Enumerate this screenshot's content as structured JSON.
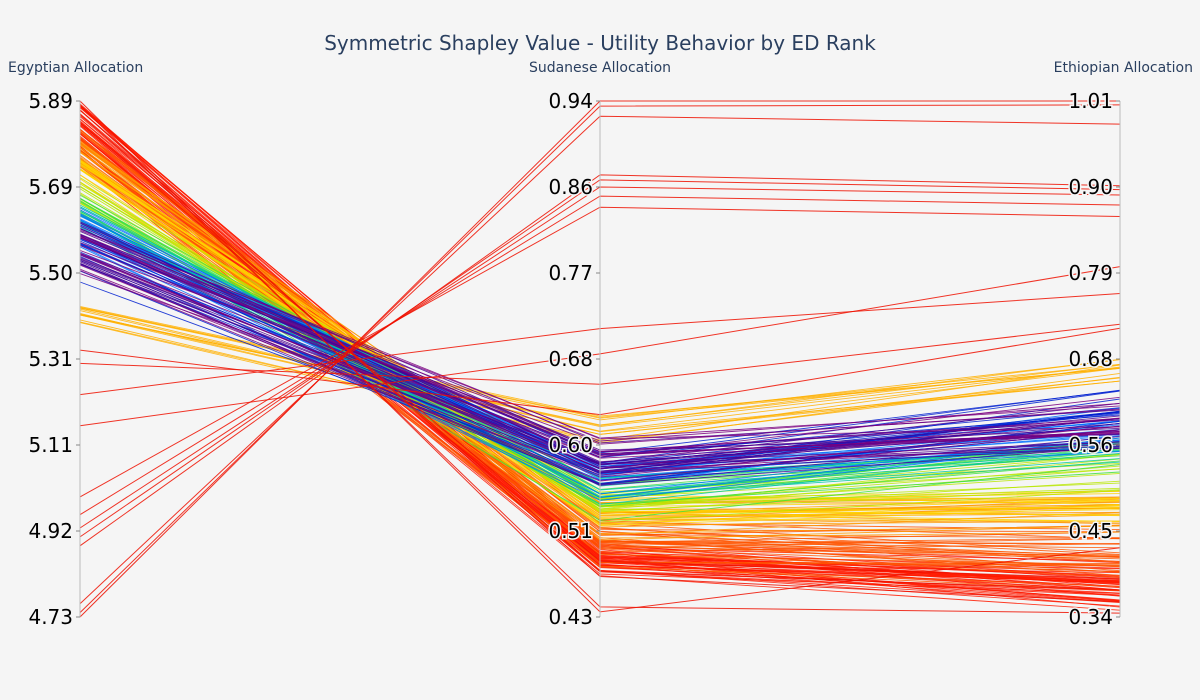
{
  "chart_data": {
    "type": "parallel_coordinates",
    "title": "Symmetric Shapley Value - Utility Behavior by ED Rank",
    "colorscale": "rainbow (red = lower ED rank value, violet = higher)",
    "dimensions": [
      {
        "label": "Egyptian Allocation",
        "range": [
          4.73,
          5.89
        ],
        "ticks": [
          "5.89",
          "5.69",
          "5.50",
          "5.31",
          "5.11",
          "4.92",
          "4.73"
        ]
      },
      {
        "label": "Sudanese Allocation",
        "range": [
          0.43,
          0.94
        ],
        "ticks": [
          "0.94",
          "0.86",
          "0.77",
          "0.68",
          "0.60",
          "0.51",
          "0.43"
        ]
      },
      {
        "label": "Ethiopian Allocation",
        "range": [
          0.34,
          1.01
        ],
        "ticks": [
          "1.01",
          "0.90",
          "0.79",
          "0.68",
          "0.56",
          "0.45",
          "0.34"
        ]
      }
    ],
    "outlier_lines": [
      [
        4.73,
        0.94,
        1.01
      ],
      [
        4.74,
        0.935,
        1.005
      ],
      [
        4.76,
        0.925,
        0.98
      ],
      [
        4.89,
        0.867,
        0.9
      ],
      [
        4.91,
        0.862,
        0.895
      ],
      [
        4.93,
        0.855,
        0.888
      ],
      [
        4.96,
        0.846,
        0.875
      ],
      [
        5.0,
        0.835,
        0.86
      ],
      [
        5.16,
        0.69,
        0.795
      ],
      [
        5.23,
        0.715,
        0.76
      ],
      [
        5.3,
        0.66,
        0.72
      ],
      [
        5.33,
        0.63,
        0.715
      ],
      [
        5.89,
        0.435,
        0.43
      ],
      [
        5.88,
        0.44,
        0.345
      ],
      [
        5.87,
        0.47,
        0.36
      ],
      [
        5.86,
        0.475,
        0.375
      ],
      [
        5.84,
        0.485,
        0.39
      ]
    ],
    "bands": [
      {
        "color": "#ff1a00",
        "egy": [
          5.78,
          5.89
        ],
        "sud": [
          0.465,
          0.51
        ],
        "eth": [
          0.335,
          0.42
        ],
        "count": 45
      },
      {
        "color": "#ff5500",
        "egy": [
          5.74,
          5.83
        ],
        "sud": [
          0.475,
          0.53
        ],
        "eth": [
          0.37,
          0.46
        ],
        "count": 35
      },
      {
        "color": "#ff9900",
        "egy": [
          5.73,
          5.8
        ],
        "sud": [
          0.5,
          0.55
        ],
        "eth": [
          0.45,
          0.5
        ],
        "count": 22
      },
      {
        "color": "#ffd000",
        "egy": [
          5.7,
          5.76
        ],
        "sud": [
          0.51,
          0.56
        ],
        "eth": [
          0.46,
          0.52
        ],
        "count": 18
      },
      {
        "color": "#ffb000",
        "egy": [
          5.39,
          5.43
        ],
        "sud": [
          0.6,
          0.63
        ],
        "eth": [
          0.64,
          0.685
        ],
        "count": 14
      },
      {
        "color": "#b8e600",
        "egy": [
          5.66,
          5.72
        ],
        "sud": [
          0.52,
          0.56
        ],
        "eth": [
          0.5,
          0.56
        ],
        "count": 14
      },
      {
        "color": "#40e040",
        "egy": [
          5.63,
          5.68
        ],
        "sud": [
          0.52,
          0.57
        ],
        "eth": [
          0.52,
          0.58
        ],
        "count": 12
      },
      {
        "color": "#00c8a0",
        "egy": [
          5.6,
          5.66
        ],
        "sud": [
          0.53,
          0.58
        ],
        "eth": [
          0.53,
          0.59
        ],
        "count": 12
      },
      {
        "color": "#0070ff",
        "egy": [
          5.55,
          5.65
        ],
        "sud": [
          0.54,
          0.59
        ],
        "eth": [
          0.55,
          0.62
        ],
        "count": 18
      },
      {
        "color": "#0020d0",
        "egy": [
          5.48,
          5.62
        ],
        "sud": [
          0.55,
          0.6
        ],
        "eth": [
          0.57,
          0.64
        ],
        "count": 16
      },
      {
        "color": "#4b0090",
        "egy": [
          5.52,
          5.62
        ],
        "sud": [
          0.55,
          0.61
        ],
        "eth": [
          0.55,
          0.62
        ],
        "count": 20
      },
      {
        "color": "#7a0080",
        "egy": [
          5.5,
          5.6
        ],
        "sud": [
          0.56,
          0.62
        ],
        "eth": [
          0.56,
          0.64
        ],
        "count": 14
      }
    ]
  }
}
